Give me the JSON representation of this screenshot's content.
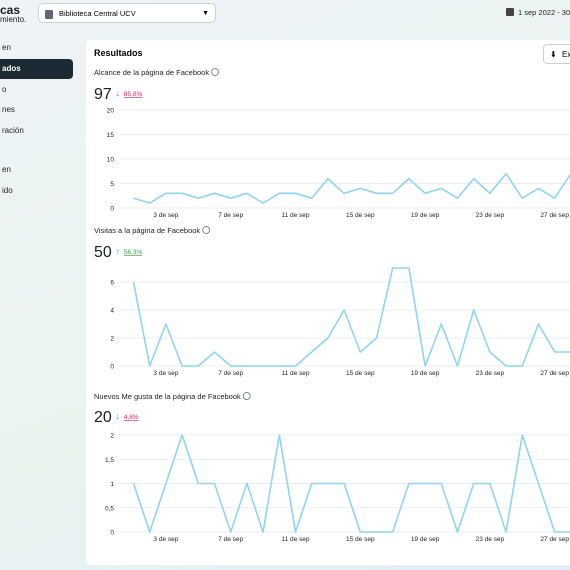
{
  "header": {
    "title_fragment": "cas",
    "subtitle_fragment": "miento.",
    "account": "Biblioteca Central UCV",
    "date_range": "1 sep 2022 - 30 s"
  },
  "sidebar": {
    "items": [
      "en",
      "ados",
      "o",
      "nes",
      "ración",
      "en",
      "ido"
    ],
    "selected": 1
  },
  "panel": {
    "title": "Resultados",
    "export": "Exp"
  },
  "charts": [
    {
      "type": "line",
      "title": "Alcance de la página de Facebook",
      "total": 97,
      "change": "85,8%",
      "trend": "down",
      "color": "#8fd3f7",
      "categories": [
        null,
        null,
        "3 de sep",
        null,
        null,
        null,
        "7 de sep",
        null,
        null,
        null,
        "11 de sep",
        null,
        null,
        null,
        "15 de sep",
        null,
        null,
        null,
        "19 de sep",
        null,
        null,
        null,
        "23 de sep",
        null,
        null,
        null,
        "27 de sep",
        null
      ],
      "values": [
        2,
        1,
        3,
        3,
        2,
        3,
        2,
        3,
        1,
        3,
        3,
        2,
        6,
        3,
        4,
        3,
        3,
        6,
        3,
        4,
        2,
        6,
        3,
        7,
        2,
        4,
        2,
        7
      ],
      "ylim": [
        0,
        20
      ],
      "yticks": [
        0,
        5,
        10,
        15,
        20
      ]
    },
    {
      "type": "line",
      "title": "Visitas a la página de Facebook",
      "total": 50,
      "change": "56,3%",
      "trend": "up",
      "color": "#8fd3f7",
      "categories": [
        null,
        null,
        "3 de sep",
        null,
        null,
        null,
        "7 de sep",
        null,
        null,
        null,
        "11 de sep",
        null,
        null,
        null,
        "15 de sep",
        null,
        null,
        null,
        "19 de sep",
        null,
        null,
        null,
        "23 de sep",
        null,
        null,
        null,
        "27 de sep",
        null
      ],
      "values": [
        6,
        0,
        3,
        0,
        0,
        1,
        0,
        0,
        0,
        0,
        0,
        1,
        2,
        4,
        1,
        2,
        7,
        7,
        0,
        3,
        0,
        4,
        1,
        0,
        0,
        3,
        1,
        1
      ],
      "ylim": [
        0,
        7
      ],
      "yticks": [
        0,
        2,
        4,
        6
      ]
    },
    {
      "type": "line",
      "title": "Nuevos Me gusta de la página de Facebook",
      "total": 20,
      "change": "4,8%",
      "trend": "down",
      "color": "#8fd3f7",
      "categories": [
        null,
        null,
        "3 de sep",
        null,
        null,
        null,
        "7 de sep",
        null,
        null,
        null,
        "11 de sep",
        null,
        null,
        null,
        "15 de sep",
        null,
        null,
        null,
        "19 de sep",
        null,
        null,
        null,
        "23 de sep",
        null,
        null,
        null,
        "27 de sep",
        null
      ],
      "values": [
        1,
        0,
        1,
        2,
        1,
        1,
        0,
        1,
        0,
        2,
        0,
        1,
        1,
        1,
        0,
        0,
        0,
        1,
        1,
        1,
        0,
        1,
        1,
        0,
        2,
        1,
        0,
        0
      ],
      "ylim": [
        0,
        2
      ],
      "yticks": [
        0,
        {
          "value": 0.5,
          "label": "0,5"
        },
        1,
        {
          "value": 1.5,
          "label": "1,5"
        },
        2
      ]
    }
  ]
}
